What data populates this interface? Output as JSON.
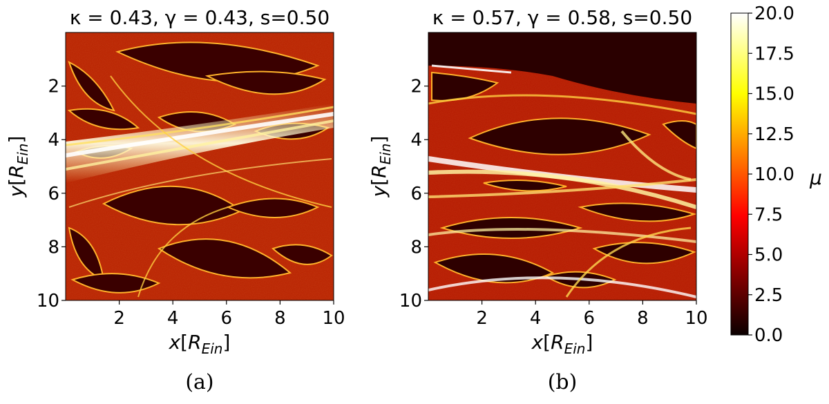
{
  "chart_data": [
    {
      "type": "heatmap",
      "title": "κ = 0.43, γ = 0.43, s=0.50",
      "xlabel": "x[R_Ein]",
      "ylabel": "y[R_Ein]",
      "xlim": [
        0,
        10
      ],
      "ylim": [
        10,
        0
      ],
      "xticks": [
        "2",
        "4",
        "6",
        "8",
        "10"
      ],
      "yticks": [
        "2",
        "4",
        "6",
        "8",
        "10"
      ],
      "caption": "(a)"
    },
    {
      "type": "heatmap",
      "title": "κ = 0.57, γ = 0.58, s=0.50",
      "xlabel": "x[R_Ein]",
      "ylabel": "y[R_Ein]",
      "xlim": [
        0,
        10
      ],
      "ylim": [
        10,
        0
      ],
      "xticks": [
        "2",
        "4",
        "6",
        "8",
        "10"
      ],
      "yticks": [
        "2",
        "4",
        "6",
        "8",
        "10"
      ],
      "caption": "(b)"
    }
  ],
  "colorbar": {
    "label": "μ",
    "min": 0.0,
    "max": 20.0,
    "ticks": [
      "0.0",
      "2.5",
      "5.0",
      "7.5",
      "10.0",
      "12.5",
      "15.0",
      "17.5",
      "20.0"
    ],
    "colormap": "hot"
  }
}
